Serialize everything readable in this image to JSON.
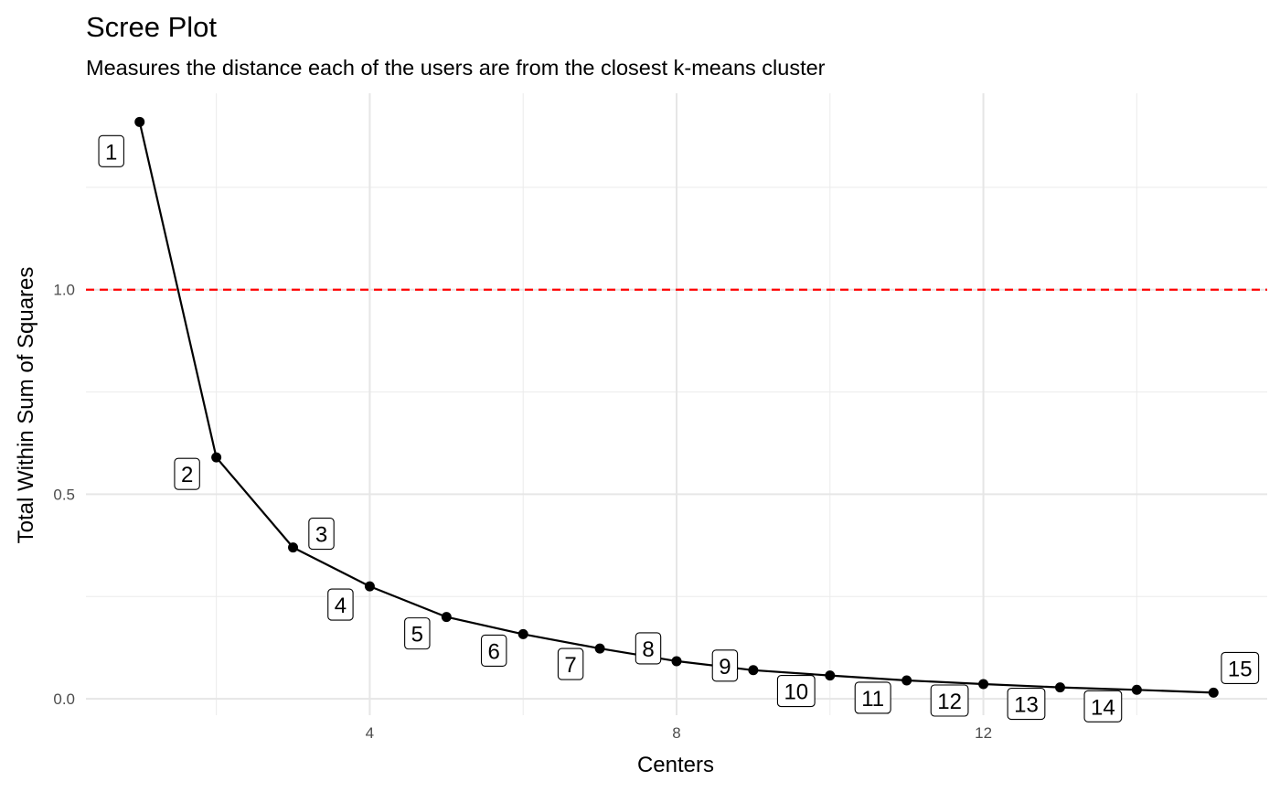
{
  "chart_data": {
    "type": "line",
    "title": "Scree Plot",
    "subtitle": "Measures the distance each of the users are from the closest k-means cluster",
    "xlabel": "Centers",
    "ylabel": "Total Within Sum of Squares",
    "xlim": [
      0.3,
      15.7
    ],
    "ylim": [
      -0.04,
      1.48
    ],
    "x_ticks": [
      4,
      8,
      12
    ],
    "x_tick_labels": [
      "4",
      "8",
      "12"
    ],
    "x_minor_ticks": [
      2,
      6,
      10,
      14
    ],
    "y_ticks": [
      0.0,
      0.5,
      1.0
    ],
    "y_tick_labels": [
      "0.0",
      "0.5",
      "1.0"
    ],
    "y_minor_ticks": [
      0.25,
      0.75,
      1.25
    ],
    "grid": true,
    "legend": "none",
    "reference_line": {
      "y": 1.0,
      "style": "dashed",
      "color": "#ff0000"
    },
    "line_color": "#000000",
    "series": [
      {
        "x": [
          1,
          2,
          3,
          4,
          5,
          6,
          7,
          8,
          9,
          10,
          11,
          12,
          13,
          14,
          15
        ],
        "values": [
          1.41,
          0.59,
          0.37,
          0.275,
          0.2,
          0.158,
          0.123,
          0.092,
          0.07,
          0.057,
          0.045,
          0.036,
          0.028,
          0.022,
          0.015
        ],
        "labels": [
          "1",
          "2",
          "3",
          "4",
          "5",
          "6",
          "7",
          "8",
          "9",
          "10",
          "11",
          "12",
          "13",
          "14",
          "15"
        ]
      }
    ]
  }
}
